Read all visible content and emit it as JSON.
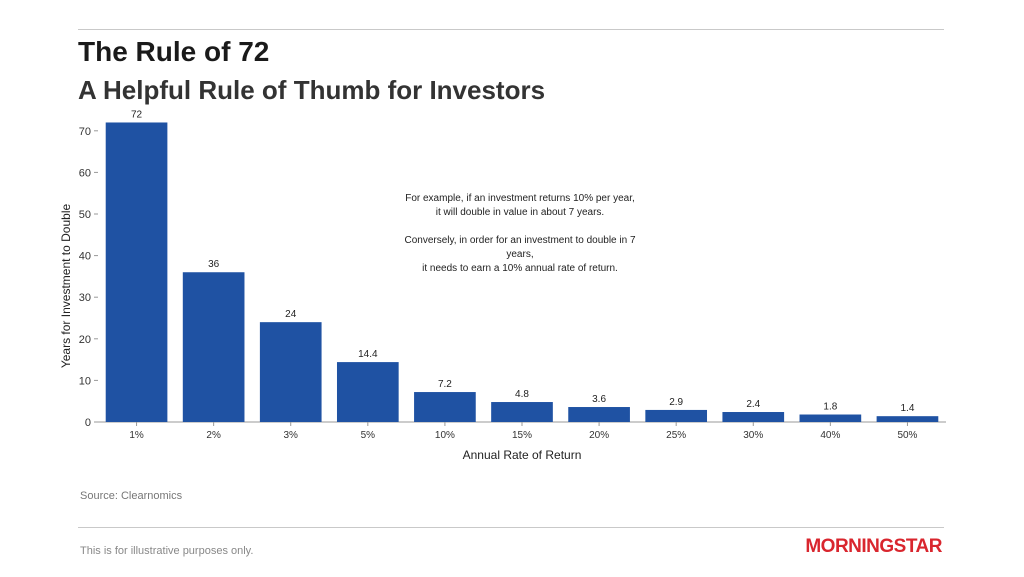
{
  "header": {
    "title": "The Rule of 72",
    "subtitle": "A Helpful Rule of Thumb for Investors"
  },
  "annotation": {
    "line1": "For example, if an investment returns 10% per year,",
    "line2": "it will double in value in about 7 years.",
    "line3": "Conversely, in order for an investment to double in 7 years,",
    "line4": "it needs to earn a 10% annual rate of return."
  },
  "source": "Source: Clearnomics",
  "footnote": "This is for illustrative purposes only.",
  "logo": {
    "text": "MORNINGSTAR",
    "color": "#d9262e"
  },
  "chart_data": {
    "type": "bar",
    "categories": [
      "1%",
      "2%",
      "3%",
      "5%",
      "10%",
      "15%",
      "20%",
      "25%",
      "30%",
      "40%",
      "50%"
    ],
    "values": [
      72,
      36,
      24,
      14.4,
      7.2,
      4.8,
      3.6,
      2.9,
      2.4,
      1.8,
      1.4
    ],
    "data_labels": [
      "72",
      "36",
      "24",
      "14.4",
      "7.2",
      "4.8",
      "3.6",
      "2.9",
      "2.4",
      "1.8",
      "1.4"
    ],
    "xlabel": "Annual Rate of Return",
    "ylabel": "Years for Investment to Double",
    "ylim": [
      0,
      75
    ],
    "yticks": [
      0,
      10,
      20,
      30,
      40,
      50,
      60,
      70
    ],
    "grid": false,
    "legend": "none",
    "bar_color": "#1f52a3"
  }
}
